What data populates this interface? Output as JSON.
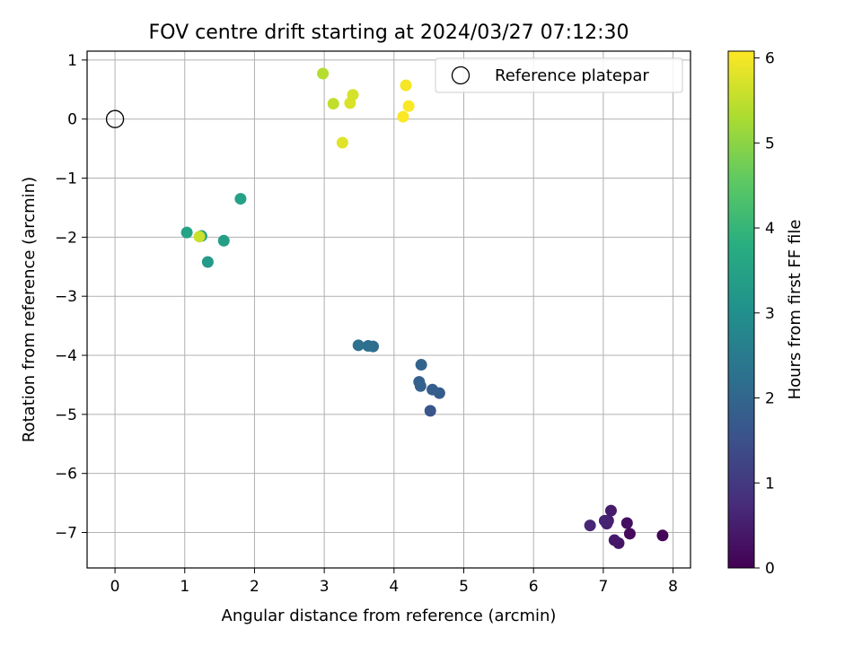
{
  "chart_data": {
    "type": "scatter",
    "title": "FOV centre drift starting at 2024/03/27 07:12:30",
    "xlabel": "Angular distance from reference (arcmin)",
    "ylabel": "Rotation from reference (arcmin)",
    "xlim": [
      -0.4,
      8.25
    ],
    "ylim": [
      -7.6,
      1.15
    ],
    "xticks": [
      0,
      1,
      2,
      3,
      4,
      5,
      6,
      7,
      8
    ],
    "yticks": [
      1,
      0,
      -1,
      -2,
      -3,
      -4,
      -5,
      -6,
      -7
    ],
    "grid": true,
    "legend": {
      "position": "top-right",
      "entries": [
        "Reference platepar"
      ]
    },
    "colorbar": {
      "label": "Hours from first FF file",
      "range": [
        0,
        6.08
      ],
      "ticks": [
        0,
        1,
        2,
        3,
        4,
        5,
        6
      ],
      "colormap": "viridis"
    },
    "reference_point": {
      "x": 0,
      "y": 0,
      "label": "Reference platepar"
    },
    "series": [
      {
        "points": [
          {
            "x": 7.85,
            "y": -7.05,
            "h": 0.05
          },
          {
            "x": 7.38,
            "y": -7.02,
            "h": 0.15
          },
          {
            "x": 7.34,
            "y": -6.84,
            "h": 0.25
          },
          {
            "x": 7.22,
            "y": -7.18,
            "h": 0.35
          },
          {
            "x": 7.16,
            "y": -7.13,
            "h": 0.4
          },
          {
            "x": 7.11,
            "y": -6.63,
            "h": 0.45
          },
          {
            "x": 7.07,
            "y": -6.8,
            "h": 0.5
          },
          {
            "x": 7.05,
            "y": -6.85,
            "h": 0.55
          },
          {
            "x": 7.02,
            "y": -6.8,
            "h": 0.6
          },
          {
            "x": 6.81,
            "y": -6.88,
            "h": 0.65
          },
          {
            "x": 4.52,
            "y": -4.94,
            "h": 1.6
          },
          {
            "x": 4.65,
            "y": -4.64,
            "h": 1.75
          },
          {
            "x": 4.55,
            "y": -4.58,
            "h": 1.8
          },
          {
            "x": 4.36,
            "y": -4.45,
            "h": 1.85
          },
          {
            "x": 4.38,
            "y": -4.52,
            "h": 1.9
          },
          {
            "x": 4.39,
            "y": -4.16,
            "h": 1.95
          },
          {
            "x": 3.7,
            "y": -3.85,
            "h": 2.15
          },
          {
            "x": 3.63,
            "y": -3.84,
            "h": 2.2
          },
          {
            "x": 3.49,
            "y": -3.83,
            "h": 2.25
          },
          {
            "x": 1.33,
            "y": -2.42,
            "h": 3.3
          },
          {
            "x": 1.56,
            "y": -2.06,
            "h": 3.4
          },
          {
            "x": 1.8,
            "y": -1.35,
            "h": 3.45
          },
          {
            "x": 1.03,
            "y": -1.92,
            "h": 3.5
          },
          {
            "x": 1.24,
            "y": -1.98,
            "h": 3.35
          },
          {
            "x": 1.21,
            "y": -1.99,
            "h": 5.6
          },
          {
            "x": 2.98,
            "y": 0.77,
            "h": 5.4
          },
          {
            "x": 3.13,
            "y": 0.26,
            "h": 5.5
          },
          {
            "x": 3.26,
            "y": -0.4,
            "h": 5.8
          },
          {
            "x": 3.37,
            "y": 0.27,
            "h": 5.75
          },
          {
            "x": 3.41,
            "y": 0.41,
            "h": 5.7
          },
          {
            "x": 4.17,
            "y": 0.57,
            "h": 6.0
          },
          {
            "x": 4.21,
            "y": 0.22,
            "h": 6.05
          },
          {
            "x": 4.13,
            "y": 0.04,
            "h": 6.05
          }
        ]
      }
    ]
  }
}
